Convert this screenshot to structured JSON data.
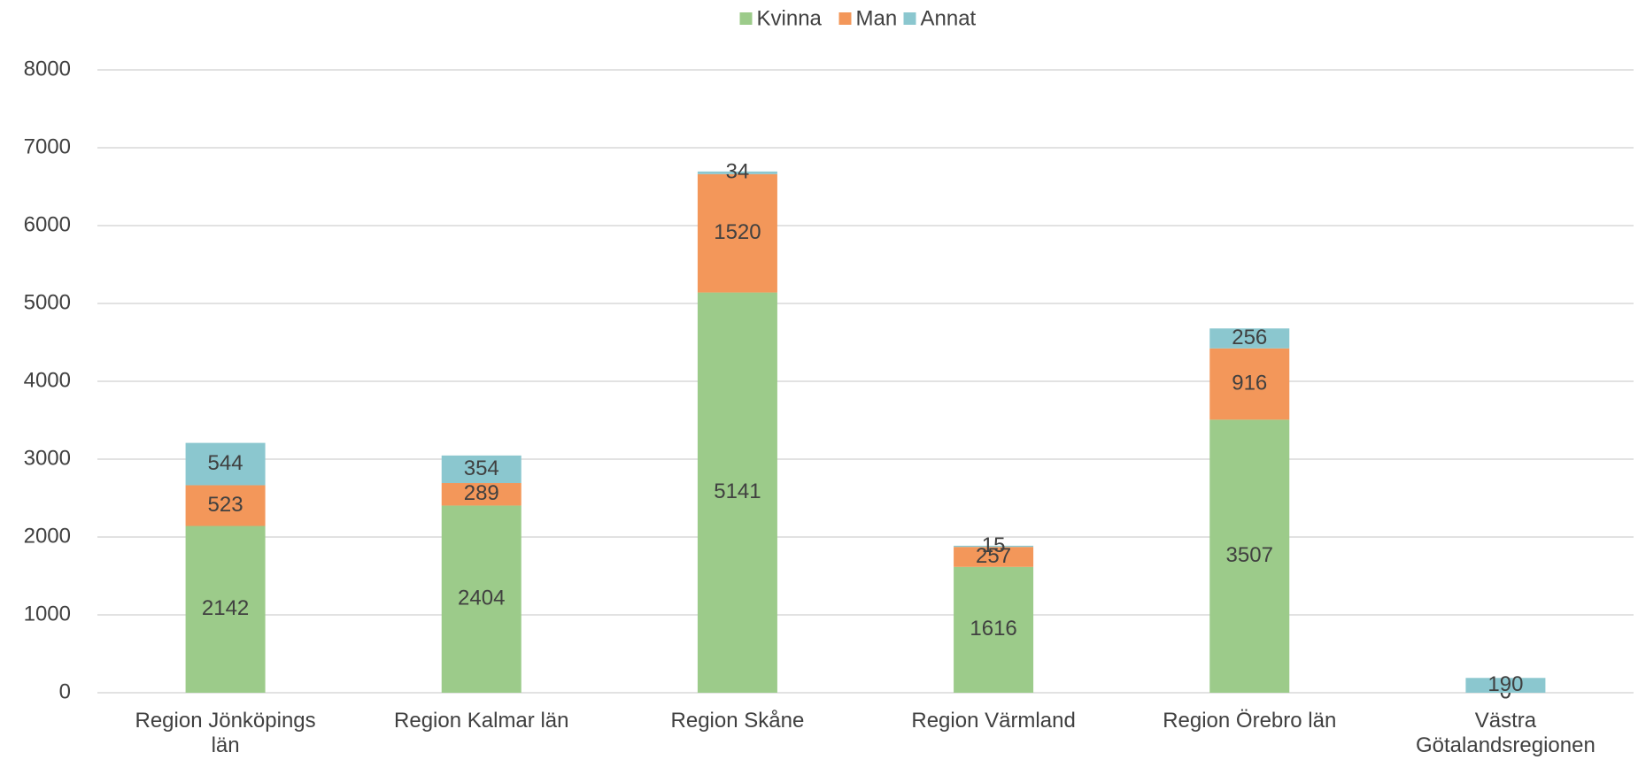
{
  "chart_data": {
    "type": "stacked_bar",
    "categories": [
      "Region Jönköpings län",
      "Region Kalmar län",
      "Region Skåne",
      "Region Värmland",
      "Region Örebro län",
      "Västra Götalandsregionen"
    ],
    "series": [
      {
        "name": "Kvinna",
        "color": "#9ccb8a",
        "values": [
          2142,
          2404,
          5141,
          1616,
          3507,
          0
        ]
      },
      {
        "name": "Man",
        "color": "#f3975a",
        "values": [
          523,
          289,
          1520,
          257,
          916,
          0
        ]
      },
      {
        "name": "Annat",
        "color": "#8bc7cf",
        "values": [
          544,
          354,
          34,
          15,
          256,
          190
        ]
      }
    ],
    "ylim": [
      0,
      8000
    ],
    "yticks": [
      0,
      1000,
      2000,
      3000,
      4000,
      5000,
      6000,
      7000,
      8000
    ],
    "grid": true,
    "legend": "top"
  }
}
